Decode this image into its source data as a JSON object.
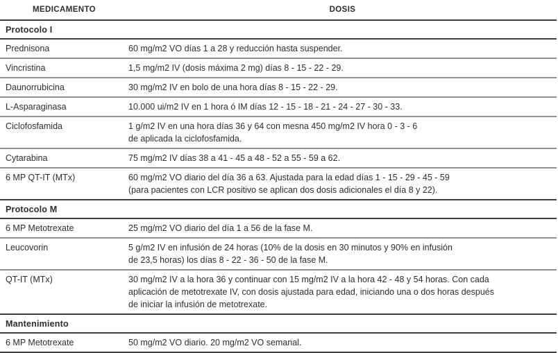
{
  "table": {
    "headers": [
      "MEDICAMENTO",
      "DOSIS"
    ],
    "sections": [
      {
        "title": "Protocolo I",
        "rows": [
          {
            "medication": "Prednisona",
            "dose": "60 mg/m2 VO días 1 a 28 y reducción hasta suspender."
          },
          {
            "medication": "Vincristina",
            "dose": "1,5 mg/m2 IV (dosis máxima 2 mg) días 8 - 15 - 22 - 29."
          },
          {
            "medication": "Daunorrubicina",
            "dose": "30 mg/m2 IV en bolo de una hora días 8 - 15 - 22 - 29."
          },
          {
            "medication": "L-Asparaginasa",
            "dose": "10.000 ui/m2 IV en 1 hora ó IM días 12 - 15 - 18 - 21 - 24 - 27 - 30 - 33."
          },
          {
            "medication": "Ciclofosfamida",
            "dose": "1 g/m2 IV en una hora días 36 y 64 con mesna 450 mg/m2 IV hora 0 - 3 - 6\nde aplicada la ciclofosfamida."
          },
          {
            "medication": "Cytarabina",
            "dose": "75 mg/m2 IV días 38 a 41 - 45 a 48 - 52 a 55 - 59 a 62."
          },
          {
            "medication": "6 MP QT-IT (MTx)",
            "dose": "60 mg/m2 VO diario del día 36 a 63. Ajustada para la edad días 1 - 15 - 29 - 45 - 59\n(para pacientes con LCR positivo se aplican dos dosis adicionales el día 8 y 22)."
          }
        ]
      },
      {
        "title": "Protocolo M",
        "rows": [
          {
            "medication": "6 MP Metotrexate",
            "dose": "25 mg/m2 VO diario del día 1 a 56 de la fase M."
          },
          {
            "medication": "Leucovorin",
            "dose": "5 g/m2 IV en infusión de 24 horas (10% de la dosis en 30 minutos y 90% en infusión\nde 23,5 horas) los días 8 - 22 - 36 - 50 de la fase M."
          },
          {
            "medication": "QT-IT (MTx)",
            "dose": "30 mg/m2 IV a la hora 36 y continuar con 15 mg/m2 IV a la hora 42 - 48 y 54 horas. Con cada\naplicación de metotrexate IV, con dosis ajustada para edad, iniciando una o dos horas después\nde iniciar la infusión de metotrexate."
          }
        ]
      },
      {
        "title": "Mantenimiento",
        "rows": [
          {
            "medication": "6 MP Metotrexate",
            "dose": "50 mg/m2 VO diario. 20 mg/m2 VO semanal."
          }
        ]
      }
    ],
    "colors": {
      "text": "#2d2d2d",
      "line_strong": "#3f3f3f",
      "line_light": "#8f8f8f",
      "background": "#ffffff"
    }
  }
}
